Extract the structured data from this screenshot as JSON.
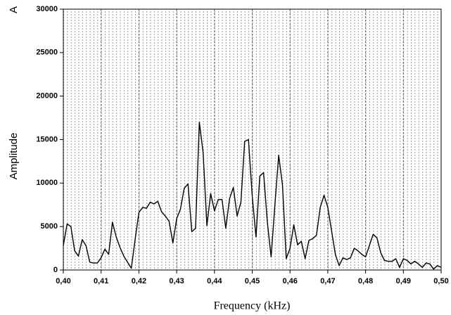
{
  "chart_data": {
    "type": "line",
    "annotation": "A",
    "xlabel": "Frequency (kHz)",
    "ylabel": "Amplitude",
    "xlim": [
      0.4,
      0.5
    ],
    "ylim": [
      0,
      30000
    ],
    "xticks": [
      {
        "value": 0.4,
        "label": "0,40"
      },
      {
        "value": 0.41,
        "label": "0,41"
      },
      {
        "value": 0.42,
        "label": "0,42"
      },
      {
        "value": 0.43,
        "label": "0,43"
      },
      {
        "value": 0.44,
        "label": "0,44"
      },
      {
        "value": 0.45,
        "label": "0,45"
      },
      {
        "value": 0.46,
        "label": "0,46"
      },
      {
        "value": 0.47,
        "label": "0,47"
      },
      {
        "value": 0.48,
        "label": "0,48"
      },
      {
        "value": 0.49,
        "label": "0,49"
      },
      {
        "value": 0.5,
        "label": "0,50"
      }
    ],
    "yticks": [
      0,
      5000,
      10000,
      15000,
      20000,
      25000,
      30000
    ],
    "grid": true,
    "color": "#000000",
    "x": [
      0.4,
      0.401,
      0.402,
      0.403,
      0.404,
      0.405,
      0.406,
      0.407,
      0.408,
      0.409,
      0.41,
      0.411,
      0.412,
      0.413,
      0.414,
      0.415,
      0.416,
      0.417,
      0.418,
      0.419,
      0.42,
      0.421,
      0.422,
      0.423,
      0.424,
      0.425,
      0.426,
      0.427,
      0.428,
      0.429,
      0.43,
      0.431,
      0.432,
      0.433,
      0.434,
      0.435,
      0.436,
      0.437,
      0.438,
      0.439,
      0.44,
      0.441,
      0.442,
      0.443,
      0.444,
      0.445,
      0.446,
      0.447,
      0.448,
      0.449,
      0.45,
      0.451,
      0.452,
      0.453,
      0.454,
      0.455,
      0.456,
      0.457,
      0.458,
      0.459,
      0.46,
      0.461,
      0.462,
      0.463,
      0.464,
      0.465,
      0.466,
      0.467,
      0.468,
      0.469,
      0.47,
      0.471,
      0.472,
      0.473,
      0.474,
      0.475,
      0.476,
      0.477,
      0.478,
      0.479,
      0.48,
      0.481,
      0.482,
      0.483,
      0.484,
      0.485,
      0.486,
      0.487,
      0.488,
      0.489,
      0.49,
      0.491,
      0.492,
      0.493,
      0.494,
      0.495,
      0.496,
      0.497,
      0.498,
      0.499,
      0.5
    ],
    "values": [
      2800,
      5300,
      5000,
      2200,
      1600,
      3500,
      2800,
      900,
      800,
      800,
      1400,
      2400,
      1800,
      5500,
      3800,
      2600,
      1600,
      900,
      200,
      3500,
      6600,
      7200,
      7100,
      7800,
      7600,
      7900,
      6700,
      6200,
      5600,
      3100,
      5900,
      7000,
      9400,
      9900,
      4400,
      4800,
      17000,
      13500,
      5100,
      8800,
      6800,
      8100,
      8100,
      4800,
      8200,
      9500,
      6200,
      7800,
      14800,
      15000,
      8500,
      3800,
      10800,
      11200,
      5500,
      1500,
      7500,
      13200,
      9800,
      1300,
      2500,
      5200,
      2900,
      3300,
      1300,
      3400,
      3600,
      4000,
      7200,
      8600,
      7200,
      4500,
      1800,
      500,
      1400,
      1200,
      1400,
      2500,
      2200,
      1800,
      1500,
      2800,
      4100,
      3700,
      2000,
      1100,
      1000,
      1000,
      1300,
      300,
      1300,
      1100,
      700,
      1000,
      700,
      300,
      800,
      700,
      100,
      500,
      300
    ]
  }
}
